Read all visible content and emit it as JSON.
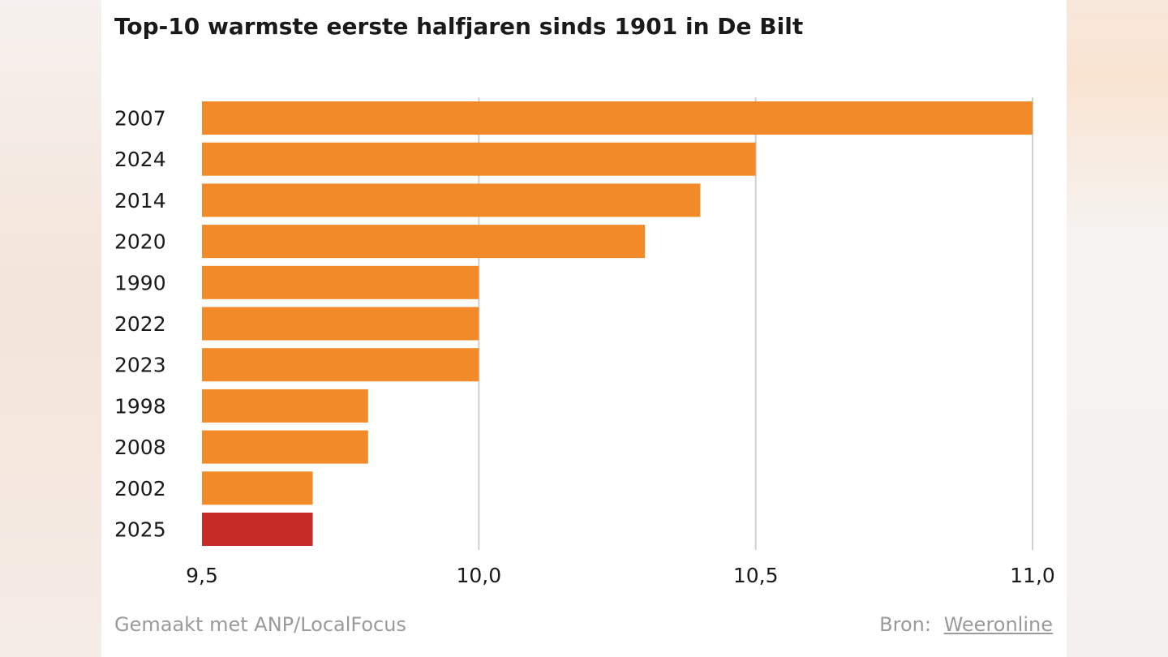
{
  "colors": {
    "bar": "#f28a29",
    "highlight": "#c62b27",
    "grid": "#cfcfcf",
    "text": "#1a1a1a",
    "muted": "#9a9a9a"
  },
  "footer": {
    "credit": "Gemaakt met ANP/LocalFocus",
    "source_label": "Bron:",
    "source_name": "Weeronline"
  },
  "chart_data": {
    "type": "bar",
    "orientation": "horizontal",
    "title": "Top-10 warmste eerste halfjaren sinds 1901 in De Bilt",
    "categories": [
      "2007",
      "2024",
      "2014",
      "2020",
      "1990",
      "2022",
      "2023",
      "1998",
      "2008",
      "2002",
      "2025"
    ],
    "values": [
      11.0,
      10.5,
      10.4,
      10.3,
      10.0,
      10.0,
      10.0,
      9.8,
      9.8,
      9.7,
      9.7
    ],
    "highlight": "2025",
    "xlim": [
      9.5,
      11.0
    ],
    "xticks": [
      9.5,
      10.0,
      10.5,
      11.0
    ],
    "xtick_labels": [
      "9,5",
      "10,0",
      "10,5",
      "11,0"
    ],
    "grid": "vertical",
    "legend": "none"
  }
}
